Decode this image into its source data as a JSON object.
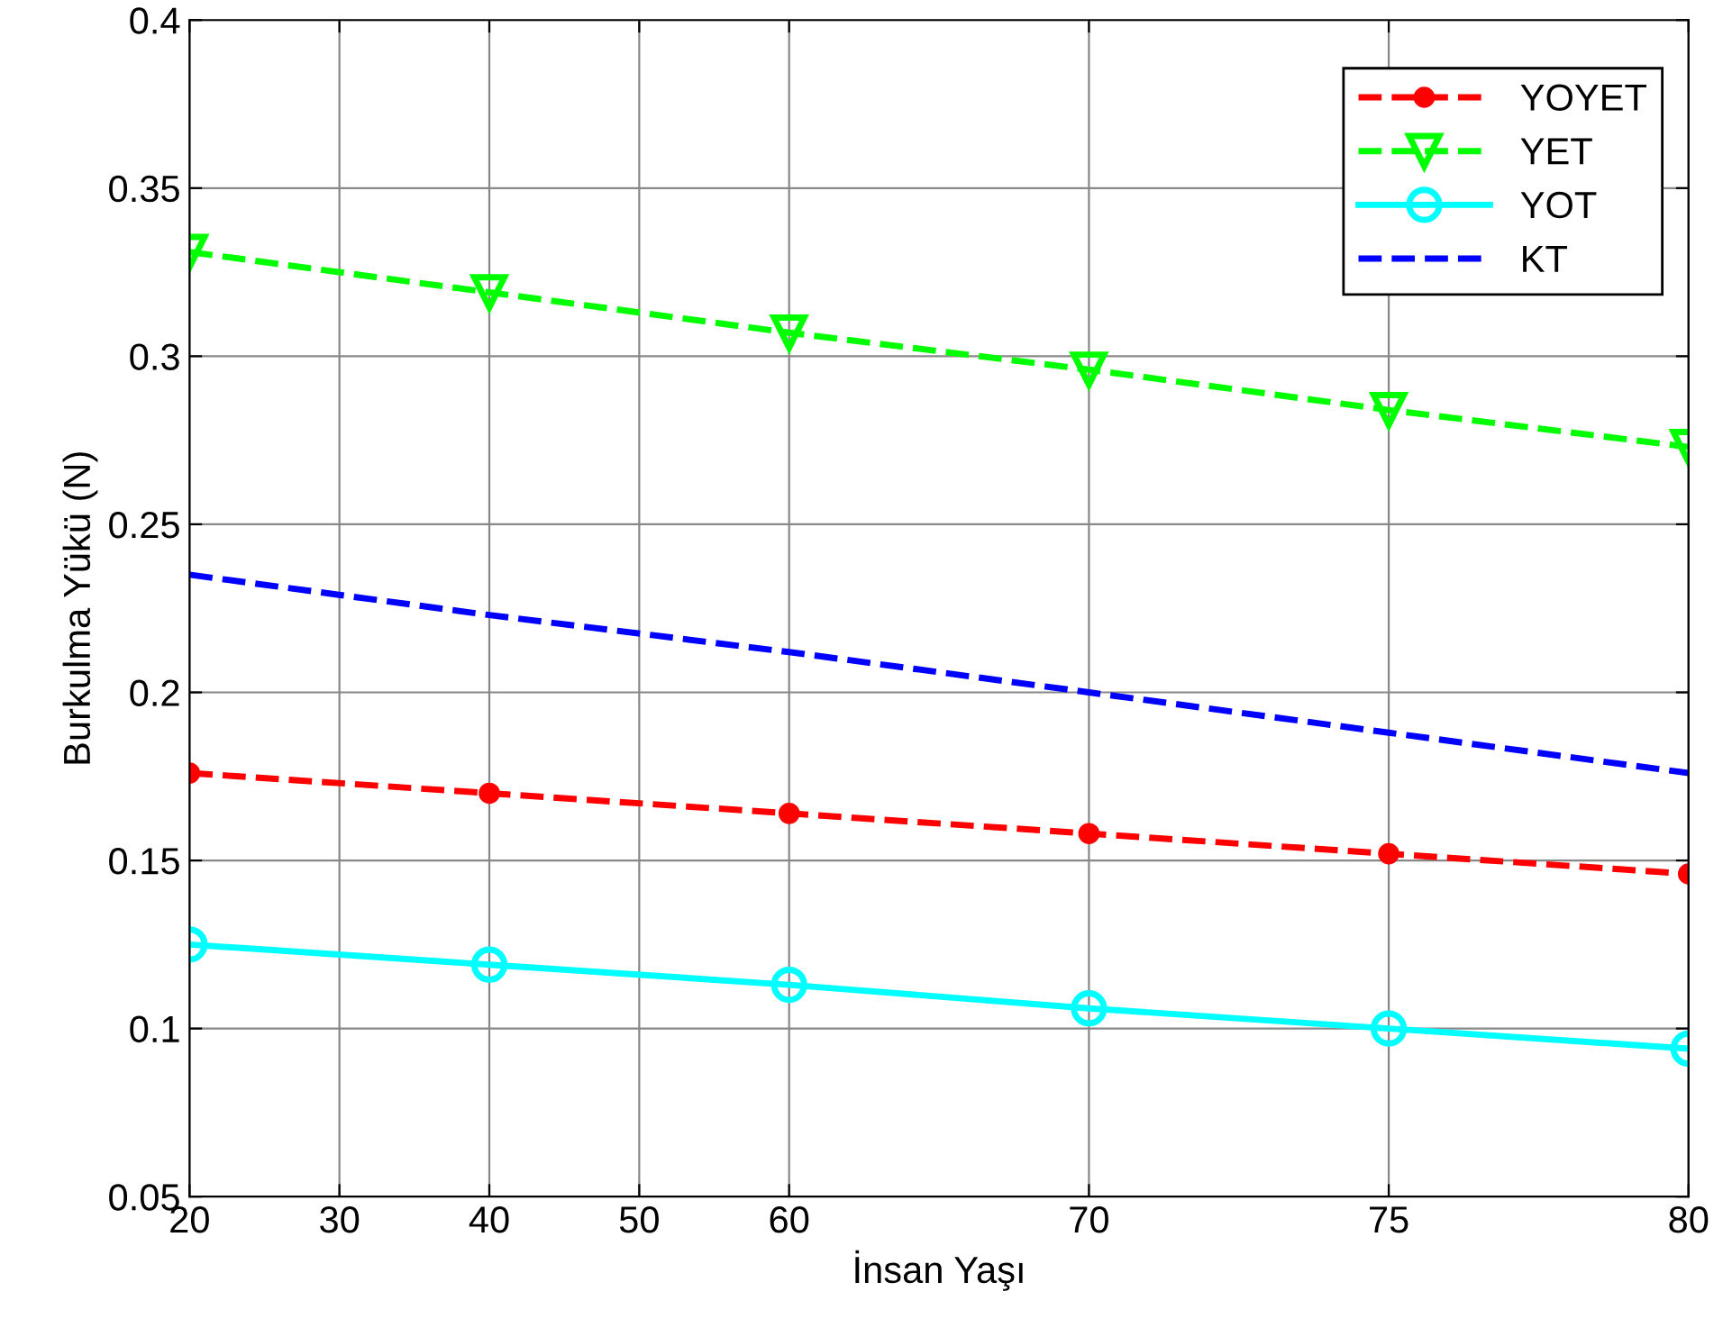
{
  "chart_data": {
    "type": "line",
    "xlabel": "İnsan Yaşı",
    "ylabel": "Burkulma Yükü (N)",
    "categories": [
      "20",
      "30",
      "40",
      "50",
      "60",
      null,
      "70",
      null,
      "75",
      null,
      "80"
    ],
    "series": [
      {
        "name": "YOYET",
        "color": "#ff0000",
        "marker": "circle",
        "line_style": "dashed",
        "x": [
          "20",
          "40",
          "60",
          "70",
          "75",
          "80"
        ],
        "values": [
          0.176,
          0.17,
          0.164,
          0.158,
          0.152,
          0.146
        ]
      },
      {
        "name": "YET",
        "color": "#00ff00",
        "marker": "triangle",
        "line_style": "dashed",
        "x": [
          "20",
          "40",
          "60",
          "70",
          "75",
          "80"
        ],
        "values": [
          0.331,
          0.319,
          0.307,
          0.296,
          0.284,
          0.273
        ]
      },
      {
        "name": "YOT",
        "color": "#00ffff",
        "marker": "circle",
        "line_style": "solid",
        "x": [
          "20",
          "40",
          "60",
          "70",
          "75",
          "80"
        ],
        "values": [
          0.125,
          0.119,
          0.113,
          0.106,
          0.1,
          0.094
        ]
      },
      {
        "name": "KT",
        "color": "#0000ff",
        "marker": "none",
        "line_style": "dashed",
        "x": [
          "20",
          "40",
          "60",
          "70",
          "75",
          "80"
        ],
        "values": [
          0.235,
          0.223,
          0.212,
          0.2,
          0.188,
          0.176
        ]
      }
    ],
    "ylim": [
      0.05,
      0.4
    ],
    "yticks": [
      0.05,
      0.1,
      0.15,
      0.2,
      0.25,
      0.3,
      0.35,
      0.4
    ],
    "grid": true,
    "legend": "top right"
  }
}
